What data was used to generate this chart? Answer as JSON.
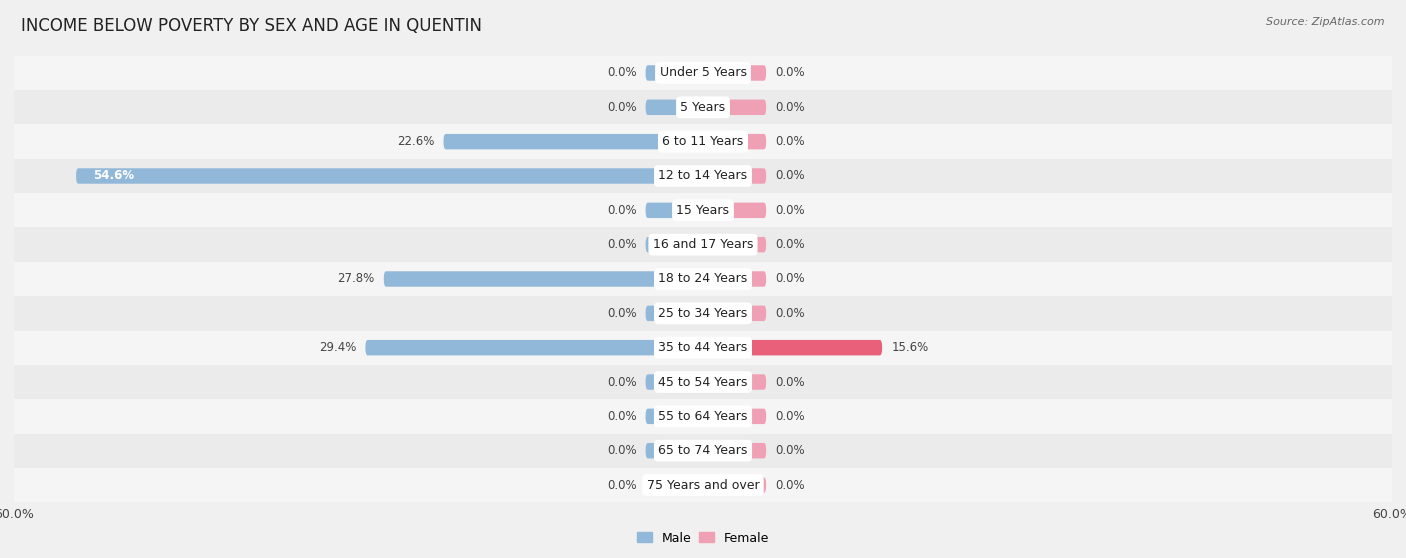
{
  "title": "INCOME BELOW POVERTY BY SEX AND AGE IN QUENTIN",
  "source": "Source: ZipAtlas.com",
  "categories": [
    "Under 5 Years",
    "5 Years",
    "6 to 11 Years",
    "12 to 14 Years",
    "15 Years",
    "16 and 17 Years",
    "18 to 24 Years",
    "25 to 34 Years",
    "35 to 44 Years",
    "45 to 54 Years",
    "55 to 64 Years",
    "65 to 74 Years",
    "75 Years and over"
  ],
  "male_values": [
    0.0,
    0.0,
    22.6,
    54.6,
    0.0,
    0.0,
    27.8,
    0.0,
    29.4,
    0.0,
    0.0,
    0.0,
    0.0
  ],
  "female_values": [
    0.0,
    0.0,
    0.0,
    0.0,
    0.0,
    0.0,
    0.0,
    0.0,
    15.6,
    0.0,
    0.0,
    0.0,
    0.0
  ],
  "male_color": "#92b8d9",
  "female_color_default": "#f0a0b4",
  "female_color_highlight": "#e8607a",
  "female_highlight_row": 8,
  "axis_max": 60.0,
  "default_bar_male": 5.0,
  "default_bar_female": 5.5,
  "row_colors": [
    "#f5f5f5",
    "#ebebeb"
  ],
  "title_fontsize": 12,
  "label_fontsize": 9,
  "value_fontsize": 8.5,
  "tick_fontsize": 9,
  "legend_fontsize": 9
}
